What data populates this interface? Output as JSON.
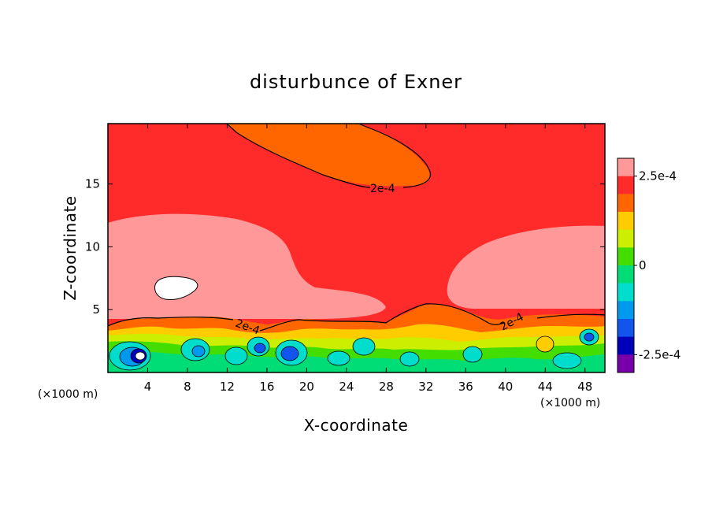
{
  "chart_data": {
    "type": "heatmap",
    "title": "disturbunce of Exner",
    "xlabel": "X-coordinate",
    "ylabel": "Z-coordinate",
    "x_unit_left": "(×1000 m)",
    "x_unit_right": "(×1000 m)",
    "xlim": [
      0,
      50
    ],
    "ylim": [
      0,
      19.8
    ],
    "x_ticks": [
      "4",
      "8",
      "12",
      "16",
      "20",
      "24",
      "28",
      "32",
      "36",
      "40",
      "44",
      "48"
    ],
    "y_ticks": [
      "5",
      "10",
      "15"
    ],
    "colorbar": {
      "levels_top_to_bottom": [
        "#ff9999",
        "#ff2a2a",
        "#ff6600",
        "#ffcc00",
        "#ccee00",
        "#44dd00",
        "#00dd77",
        "#00ddcc",
        "#0099ee",
        "#1155ee",
        "#0000bb",
        "#7700aa"
      ],
      "tick_labels": [
        "2.5e-4",
        "0",
        "-2.5e-4"
      ],
      "range": [
        -0.0003,
        0.0003
      ]
    },
    "contour_labels": [
      "2e-4",
      "2e-4",
      "2e-4"
    ],
    "regions": [
      {
        "level": "2e-4 to 2.5e-4",
        "area": "upper layer above z=12 (dominant)"
      },
      {
        "level": "1.5e-4 to 2e-4",
        "area": "plume top center, x=13-32, z=15-20"
      },
      {
        "level": "2.5e-4 to 3e-4",
        "area": "mid layer z=4-12 on left (x=0-22) and right (x=32-50)"
      },
      {
        "level": "above 3e-4",
        "area": "white patch near x=6, z=7"
      },
      {
        "level": "-3e-4 to 1.5e-4",
        "area": "turbulent boundary layer z=0-4"
      }
    ]
  }
}
